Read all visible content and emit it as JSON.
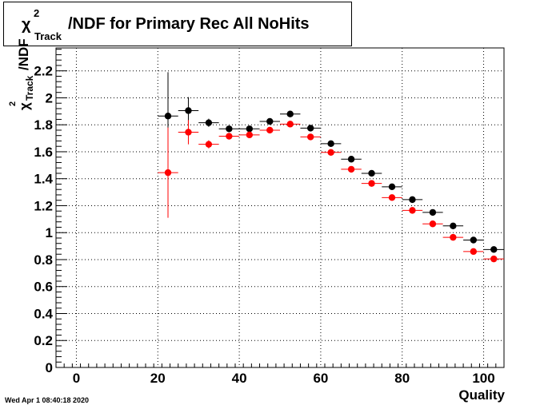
{
  "chart_data": {
    "type": "scatter",
    "title": {
      "chi": "χ",
      "superscript": "2",
      "subscript": "Track",
      "rest": "/NDF for Primary Rec All NoHits"
    },
    "ylabel": {
      "chi": "χ",
      "superscript": "2",
      "subscript": "Track",
      "rest": "/NDF"
    },
    "xlabel": "Quality",
    "xlim": [
      -5,
      105
    ],
    "ylim": [
      0,
      2.37
    ],
    "x_ticks": [
      0,
      20,
      40,
      60,
      80,
      100
    ],
    "y_ticks": [
      0,
      0.2,
      0.4,
      0.6,
      0.8,
      1,
      1.2,
      1.4,
      1.6,
      1.8,
      2,
      2.2
    ],
    "x_tick_labels": [
      "0",
      "20",
      "40",
      "60",
      "80",
      "100"
    ],
    "y_tick_labels": [
      "0",
      "0.2",
      "0.4",
      "0.6",
      "0.8",
      "1",
      "1.2",
      "1.4",
      "1.6",
      "1.8",
      "2",
      "2.2"
    ],
    "grid": true,
    "series": [
      {
        "color": "#000000",
        "x": [
          22.5,
          27.5,
          32.5,
          37.5,
          42.5,
          47.5,
          52.5,
          57.5,
          62.5,
          67.5,
          72.5,
          77.5,
          82.5,
          87.5,
          92.5,
          97.5,
          102.5
        ],
        "y": [
          1.865,
          1.905,
          1.815,
          1.77,
          1.77,
          1.825,
          1.88,
          1.775,
          1.66,
          1.545,
          1.44,
          1.34,
          1.245,
          1.15,
          1.05,
          0.945,
          0.875
        ],
        "yerr": [
          0.325,
          0.1,
          0.03,
          0.02,
          0.015,
          0.015,
          0.015,
          0.015,
          0.015,
          0.015,
          0.015,
          0.015,
          0.015,
          0.015,
          0.015,
          0.015,
          0.015
        ]
      },
      {
        "color": "#ff0000",
        "x": [
          22.5,
          27.5,
          32.5,
          37.5,
          42.5,
          47.5,
          52.5,
          57.5,
          62.5,
          67.5,
          72.5,
          77.5,
          82.5,
          87.5,
          92.5,
          97.5,
          102.5
        ],
        "y": [
          1.445,
          1.745,
          1.655,
          1.715,
          1.725,
          1.76,
          1.805,
          1.71,
          1.595,
          1.47,
          1.365,
          1.26,
          1.165,
          1.065,
          0.965,
          0.86,
          0.805
        ],
        "yerr": [
          0.335,
          0.09,
          0.03,
          0.02,
          0.015,
          0.015,
          0.015,
          0.015,
          0.015,
          0.015,
          0.015,
          0.015,
          0.015,
          0.015,
          0.015,
          0.015,
          0.015
        ]
      }
    ],
    "x_half_width": 2.5
  },
  "footer": "Wed Apr  1 08:40:18 2020"
}
